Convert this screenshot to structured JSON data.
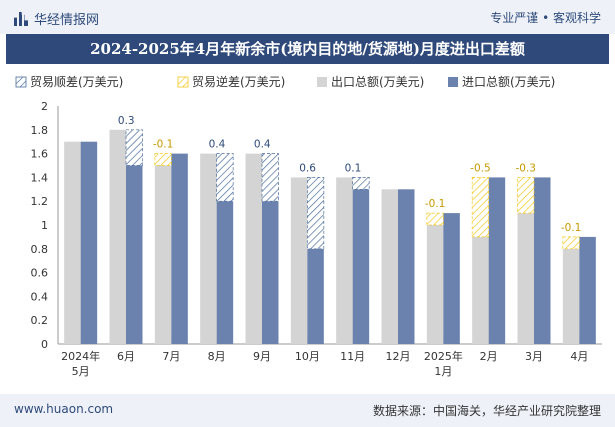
{
  "header": {
    "brand": "华经情报网",
    "tagline": "专业严谨 • 客观科学"
  },
  "footer": {
    "site": "www.huaon.com",
    "source": "数据来源：中国海关，华经产业研究院整理"
  },
  "colors": {
    "surplus": "#4a6c9b",
    "deficit": "#f2c81e",
    "export": "#d4d4d4",
    "import": "#6b82ae",
    "brand": "#2f4a7a"
  },
  "chart_data": {
    "type": "bar",
    "title": "2024-2025年4月年新余市(境内目的地/货源地)月度进出口差额",
    "legend": [
      "贸易顺差(万美元)",
      "贸易逆差(万美元)",
      "出口总额(万美元)",
      "进口总额(万美元)"
    ],
    "legend_position": "top",
    "categories": [
      [
        "2024年",
        "5月"
      ],
      [
        "6月"
      ],
      [
        "7月"
      ],
      [
        "8月"
      ],
      [
        "9月"
      ],
      [
        "10月"
      ],
      [
        "11月"
      ],
      [
        "12月"
      ],
      [
        "2025年",
        "1月"
      ],
      [
        "2月"
      ],
      [
        "3月"
      ],
      [
        "4月"
      ]
    ],
    "series": [
      {
        "name": "出口总额(万美元)",
        "values": [
          1.7,
          1.8,
          1.5,
          1.6,
          1.6,
          1.4,
          1.4,
          1.3,
          1.0,
          0.9,
          1.1,
          0.8
        ]
      },
      {
        "name": "进口总额(万美元)",
        "values": [
          1.7,
          1.5,
          1.6,
          1.2,
          1.2,
          0.8,
          1.3,
          1.3,
          1.1,
          1.4,
          1.4,
          0.9
        ]
      }
    ],
    "balance": [
      0,
      0.3,
      -0.1,
      0.4,
      0.4,
      0.6,
      0.1,
      0,
      -0.1,
      -0.5,
      -0.3,
      -0.1
    ],
    "balance_labels": [
      "",
      "0.3",
      "-0.1",
      "0.4",
      "0.4",
      "0.6",
      "0.1",
      "",
      "-0.1",
      "-0.5",
      "-0.3",
      "-0.1"
    ],
    "yticks": [
      "0",
      "0.2",
      "0.4",
      "0.6",
      "0.8",
      "1",
      "1.2",
      "1.4",
      "1.6",
      "1.8",
      "2"
    ],
    "ylim": [
      0,
      2
    ],
    "grid": false
  }
}
